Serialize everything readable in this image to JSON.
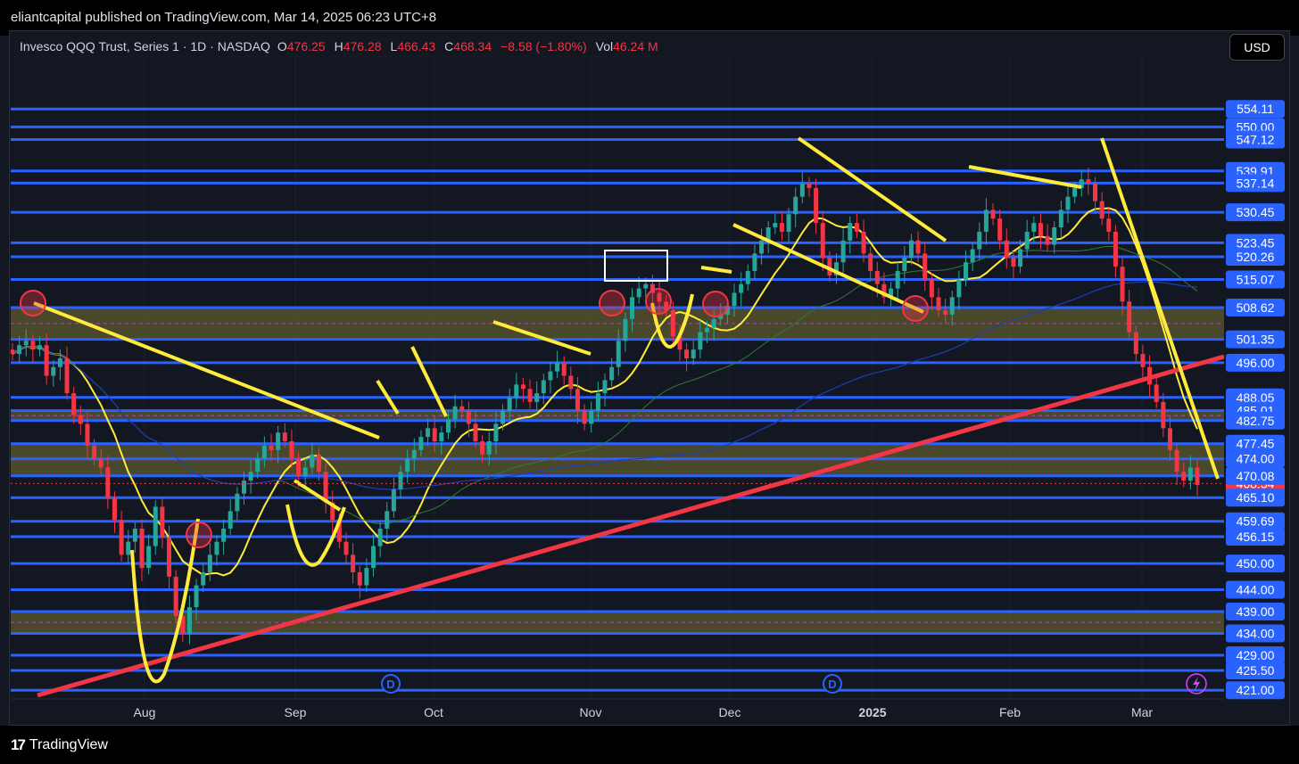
{
  "header": {
    "published": "eliantcapital published on TradingView.com, Mar 14, 2025 06:23 UTC+8"
  },
  "legend": {
    "name": "Invesco QQQ Trust, Series 1 · 1D · NASDAQ",
    "o_label": "O",
    "o_value": "476.25",
    "h_label": "H",
    "h_value": "476.28",
    "l_label": "L",
    "l_value": "466.43",
    "c_label": "C",
    "c_value": "468.34",
    "change": "−8.58 (−1.80%)",
    "vol_label": "Vol",
    "vol_value": "46.24 M"
  },
  "currency_button": "USD",
  "footer": {
    "brand": "TradingView"
  },
  "colors": {
    "up": "#26a69a",
    "down": "#f23645",
    "level_line": "#2962ff",
    "drawing": "#ffeb3b",
    "trendline": "#f23645",
    "zone": "#5d5a2f"
  },
  "chart_data": {
    "type": "candlestick",
    "title": "",
    "ylim": [
      419,
      566
    ],
    "x_ticks": [
      "Aug",
      "Sep",
      "Oct",
      "Nov",
      "Dec",
      "2025",
      "Feb",
      "Mar"
    ],
    "price_levels": [
      554.11,
      550.0,
      547.12,
      539.91,
      537.14,
      530.45,
      523.45,
      520.26,
      515.07,
      508.62,
      501.35,
      496.0,
      488.05,
      485.01,
      482.75,
      477.45,
      474.0,
      470.08,
      465.1,
      459.69,
      456.15,
      450.0,
      444.0,
      439.0,
      434.0,
      429.0,
      425.5,
      421.0
    ],
    "last_price": 468.34,
    "zones": [
      {
        "from": 501.35,
        "to": 508.62
      },
      {
        "from": 470.08,
        "to": 477.45
      },
      {
        "from": 482.75,
        "to": 485.01
      },
      {
        "from": 434.0,
        "to": 439.0
      }
    ],
    "event_markers": [
      "D",
      "D"
    ],
    "closes": [
      498,
      500,
      501,
      499,
      500,
      493,
      495,
      497,
      489,
      484,
      482,
      477,
      474,
      472,
      465,
      460,
      452,
      455,
      458,
      449,
      454,
      463,
      456,
      447,
      438,
      434,
      440,
      445,
      448,
      452,
      455,
      458,
      462,
      466,
      469,
      471,
      474,
      477,
      476,
      480,
      478,
      474,
      470,
      472,
      475,
      471,
      464,
      460,
      455,
      452,
      448,
      445,
      449,
      454,
      458,
      462,
      467,
      471,
      474,
      476,
      479,
      481,
      478,
      480,
      483,
      486,
      485,
      482,
      478,
      475,
      478,
      482,
      485,
      488,
      491,
      490,
      487,
      489,
      492,
      494,
      496,
      493,
      490,
      485,
      482,
      485,
      489,
      492,
      495,
      501,
      506,
      511,
      513,
      514,
      512,
      510,
      508,
      502,
      499,
      497,
      499,
      503,
      504,
      506,
      507,
      509,
      512,
      514,
      517,
      521,
      524,
      527,
      528,
      526,
      530,
      534,
      537,
      536,
      528,
      520,
      516,
      519,
      524,
      528,
      526,
      521,
      517,
      514,
      511,
      513,
      517,
      520,
      524,
      521,
      515,
      511,
      508,
      507,
      511,
      515,
      519,
      522,
      526,
      531,
      529,
      524,
      520,
      518,
      522,
      526,
      528,
      525,
      523,
      527,
      531,
      534,
      536,
      538,
      537,
      533,
      529,
      526,
      518,
      510,
      503,
      498,
      495,
      491,
      487,
      481,
      476,
      471,
      469,
      472,
      468
    ]
  }
}
